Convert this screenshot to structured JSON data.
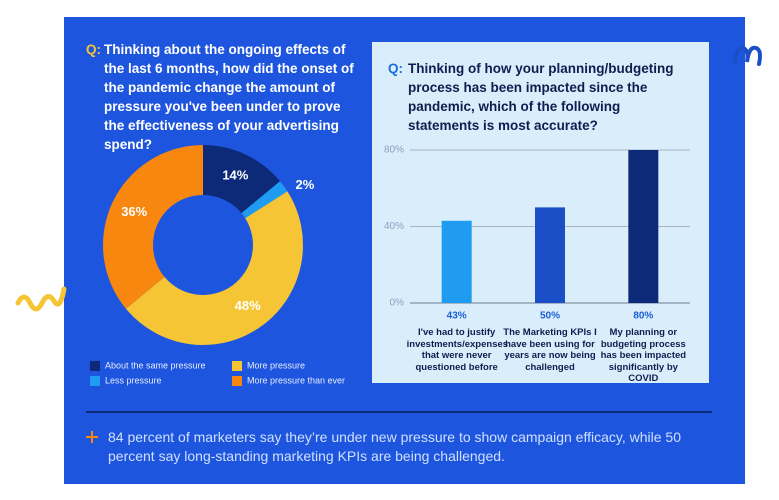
{
  "chart_data": [
    {
      "type": "donut",
      "label": "Q:",
      "title": "Thinking about the ongoing effects of the last 6 months, how did the onset of the pandemic change the amount of pressure you've been under to prove the effectiveness of your advertising spend?",
      "categories": [
        "About the same pressure",
        "Less pressure",
        "More pressure",
        "More pressure than ever"
      ],
      "values": [
        14,
        2,
        48,
        36
      ],
      "value_labels": [
        "14%",
        "2%",
        "48%",
        "36%"
      ],
      "colors": [
        "#0c2a78",
        "#1f9cf2",
        "#f6c535",
        "#f7870f"
      ],
      "legend": "bottom"
    },
    {
      "type": "bar",
      "label": "Q:",
      "title": "Thinking of how your planning/budgeting process has been impacted since the pandemic, which of the following statements is most accurate?",
      "categories": [
        "I've had to justify investments/expenses that were never questioned before",
        "The Marketing KPIs I have been using for years are now being challenged",
        "My planning or budgeting process has been impacted significantly by COVID"
      ],
      "values": [
        43,
        50,
        80
      ],
      "value_labels": [
        "43%",
        "50%",
        "80%"
      ],
      "colors": [
        "#1f9cf2",
        "#1a4fc7",
        "#0c2a78"
      ],
      "ylim": [
        0,
        80
      ],
      "yticks": [
        {
          "value": 0,
          "label": "0%"
        },
        {
          "value": 40,
          "label": "40%"
        },
        {
          "value": 80,
          "label": "80%"
        }
      ],
      "grid": true
    }
  ],
  "footnote": "84 percent of marketers say they’re under new pressure to show campaign efficacy, while 50 percent say long-standing marketing KPIs are being challenged."
}
